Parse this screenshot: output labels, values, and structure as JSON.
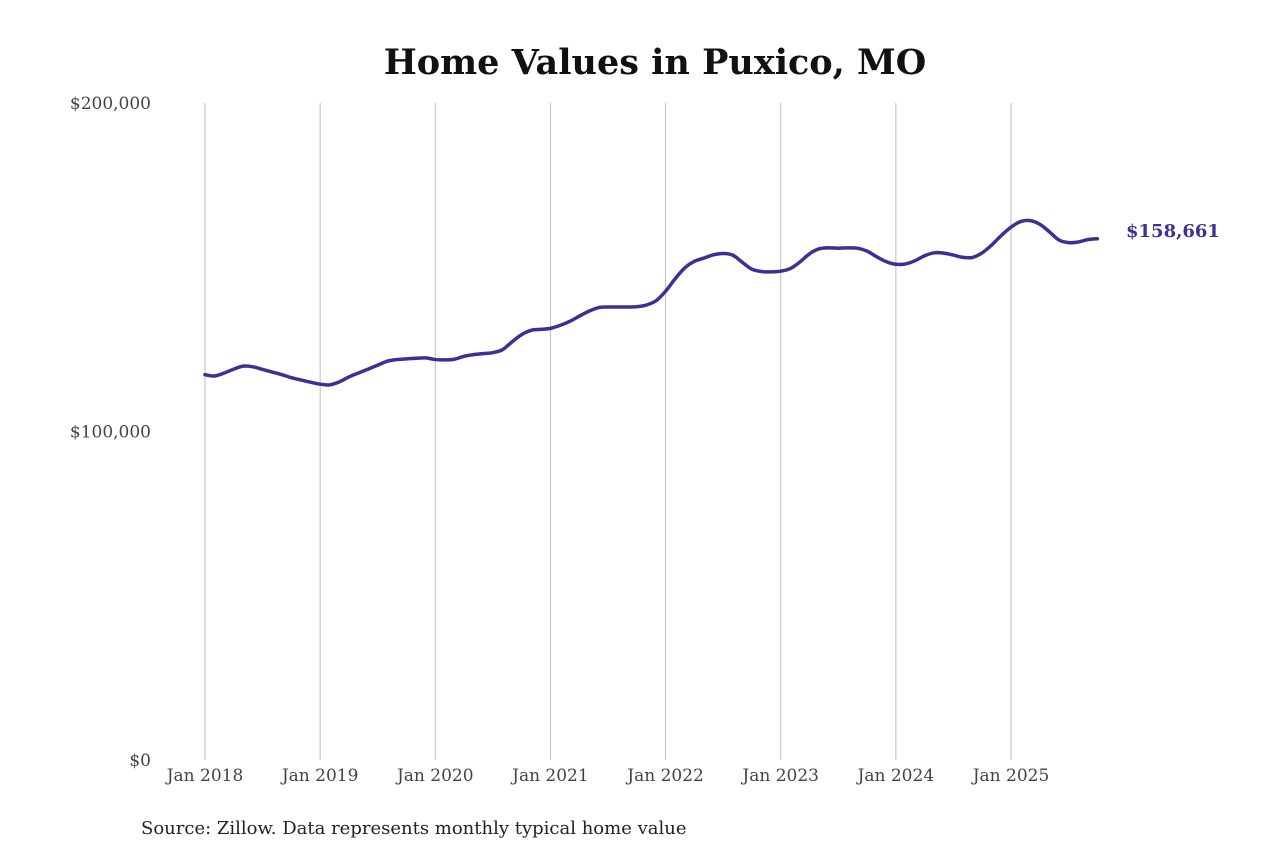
{
  "chart_data": {
    "type": "line",
    "title": "Home Values in Puxico, MO",
    "xlabel": "",
    "ylabel": "",
    "source": "Source: Zillow. Data represents monthly typical home value",
    "ylim": [
      0,
      200000
    ],
    "y_ticks": [
      {
        "value": 0,
        "label": "$0"
      },
      {
        "value": 100000,
        "label": "$100,000"
      },
      {
        "value": 200000,
        "label": "$200,000"
      }
    ],
    "x_ticks": [
      {
        "value": "2018-01",
        "label": "Jan 2018"
      },
      {
        "value": "2019-01",
        "label": "Jan 2019"
      },
      {
        "value": "2020-01",
        "label": "Jan 2020"
      },
      {
        "value": "2021-01",
        "label": "Jan 2021"
      },
      {
        "value": "2022-01",
        "label": "Jan 2022"
      },
      {
        "value": "2023-01",
        "label": "Jan 2023"
      },
      {
        "value": "2024-01",
        "label": "Jan 2024"
      },
      {
        "value": "2025-01",
        "label": "Jan 2025"
      }
    ],
    "grid": "vertical",
    "line_color": "#3a3195",
    "end_label": "$158,661",
    "series": [
      {
        "x": [
          "2018-01",
          "2018-02",
          "2018-03",
          "2018-04",
          "2018-05",
          "2018-06",
          "2018-07",
          "2018-08",
          "2018-09",
          "2018-10",
          "2018-11",
          "2018-12",
          "2019-01",
          "2019-02",
          "2019-03",
          "2019-04",
          "2019-05",
          "2019-06",
          "2019-07",
          "2019-08",
          "2019-09",
          "2019-10",
          "2019-11",
          "2019-12",
          "2020-01",
          "2020-02",
          "2020-03",
          "2020-04",
          "2020-05",
          "2020-06",
          "2020-07",
          "2020-08",
          "2020-09",
          "2020-10",
          "2020-11",
          "2020-12",
          "2021-01",
          "2021-02",
          "2021-03",
          "2021-04",
          "2021-05",
          "2021-06",
          "2021-07",
          "2021-08",
          "2021-09",
          "2021-10",
          "2021-11",
          "2021-12",
          "2022-01",
          "2022-02",
          "2022-03",
          "2022-04",
          "2022-05",
          "2022-06",
          "2022-07",
          "2022-08",
          "2022-09",
          "2022-10",
          "2022-11",
          "2022-12",
          "2023-01",
          "2023-02",
          "2023-03",
          "2023-04",
          "2023-05",
          "2023-06",
          "2023-07",
          "2023-08",
          "2023-09",
          "2023-10",
          "2023-11",
          "2023-12",
          "2024-01",
          "2024-02",
          "2024-03",
          "2024-04",
          "2024-05",
          "2024-06",
          "2024-07",
          "2024-08",
          "2024-09",
          "2024-10",
          "2024-11",
          "2024-12",
          "2025-01",
          "2025-02",
          "2025-03",
          "2025-04",
          "2025-05",
          "2025-06",
          "2025-07",
          "2025-08",
          "2025-09",
          "2025-10"
        ],
        "values": [
          117300,
          116900,
          117800,
          119000,
          119900,
          119700,
          118900,
          118100,
          117300,
          116400,
          115700,
          115000,
          114400,
          114200,
          115100,
          116600,
          117800,
          119000,
          120200,
          121400,
          121900,
          122100,
          122300,
          122400,
          121900,
          121800,
          122000,
          122900,
          123400,
          123700,
          124000,
          124900,
          127300,
          129500,
          130800,
          131100,
          131400,
          132300,
          133500,
          135100,
          136600,
          137700,
          137900,
          137900,
          137900,
          138000,
          138500,
          139800,
          142700,
          146500,
          149800,
          151800,
          152800,
          153800,
          154200,
          153700,
          151500,
          149400,
          148700,
          148600,
          148800,
          149600,
          151600,
          154100,
          155600,
          155900,
          155800,
          155900,
          155800,
          154900,
          153200,
          151700,
          150900,
          151000,
          152000,
          153500,
          154400,
          154300,
          153700,
          153000,
          153000,
          154400,
          156800,
          159700,
          162200,
          163900,
          164200,
          163100,
          160800,
          158300,
          157500,
          157700,
          158400,
          158661
        ]
      }
    ]
  }
}
